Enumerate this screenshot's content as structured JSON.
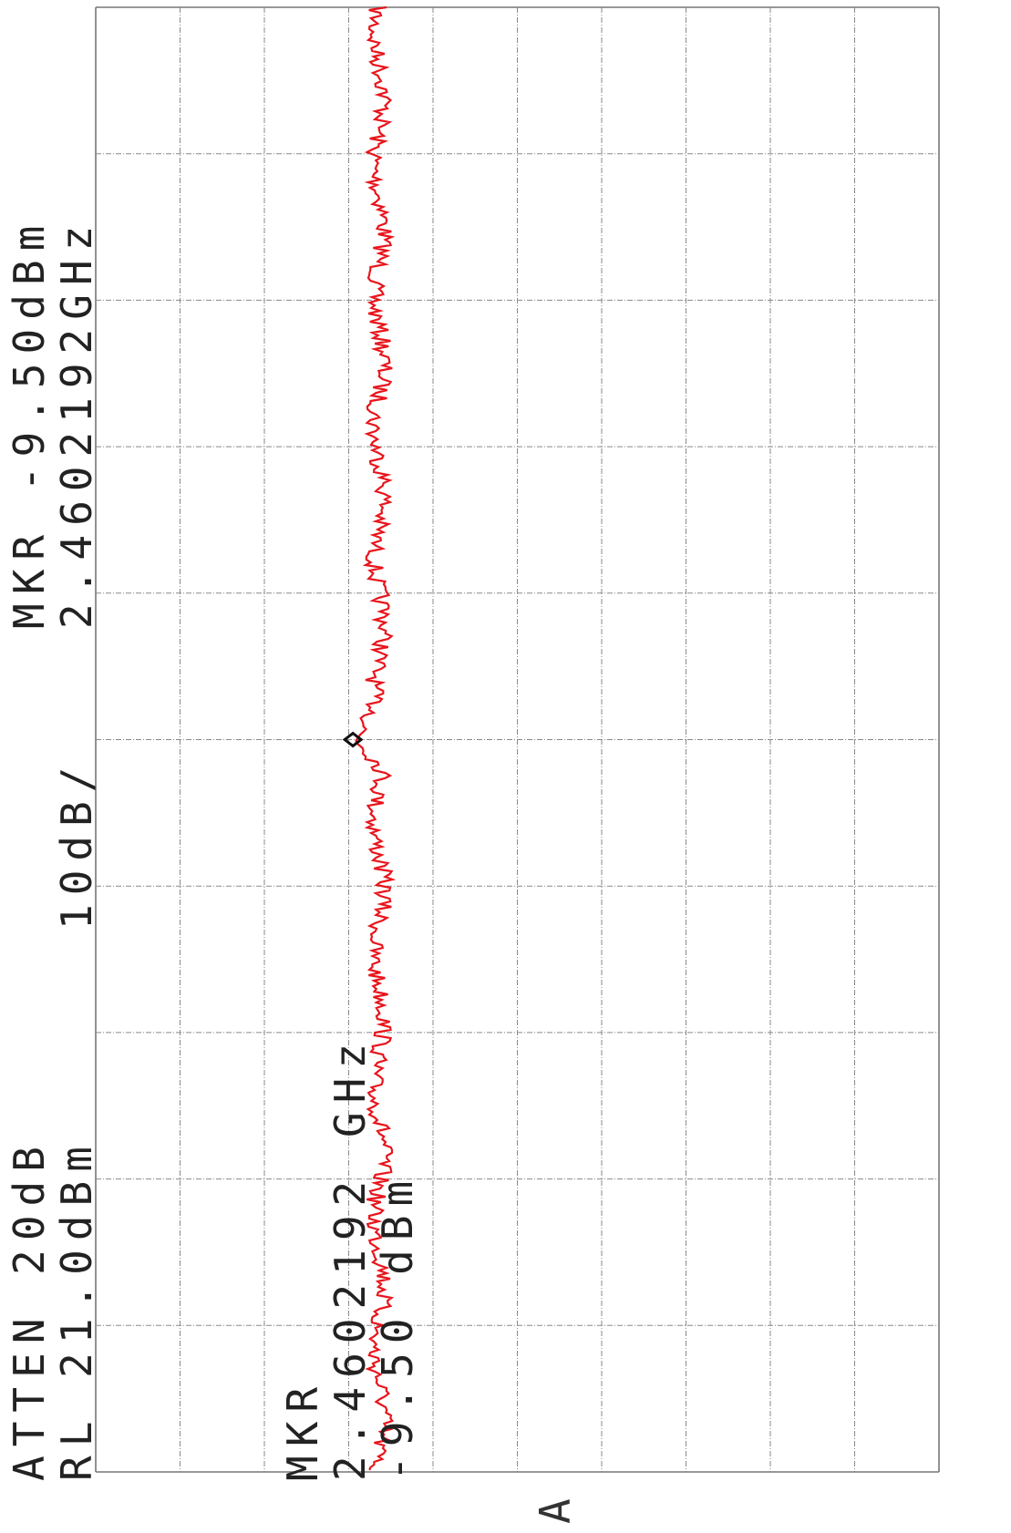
{
  "header": {
    "atten": "ATTEN 20dB",
    "ref_level": "RL 21.0dBm",
    "scale": "10dB/",
    "marker_line1": "MKR -9.50dBm",
    "marker_line2": "2.4602192GHz"
  },
  "marker_readout": {
    "label": "MKR",
    "frequency": "2.4602192 GHz",
    "amplitude": "-9.50 dBm"
  },
  "trace_label": "A",
  "colors": {
    "trace": "#e8141c",
    "grid": "#8a8a8a",
    "border": "#777777",
    "text": "#222222",
    "marker": "#111111"
  },
  "chart_data": {
    "type": "line",
    "x_unit": "GHz",
    "y_unit": "dBm",
    "grid": true,
    "y_divisions": 10,
    "x_divisions": 10,
    "y_per_division_db": 10,
    "ylim": [
      -79.0,
      21.0
    ],
    "marker": {
      "x": 2.4602192,
      "y": -9.5
    },
    "trace_level_dbm": -12.6,
    "trace_ripple_db": 2.2
  }
}
